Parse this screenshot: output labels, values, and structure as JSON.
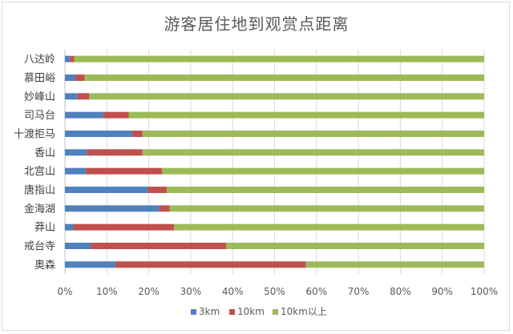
{
  "chart_data": {
    "type": "bar",
    "orientation": "horizontal",
    "stacked": "percent",
    "title": "游客居住地到观赏点距离",
    "categories": [
      "八达岭",
      "慕田峪",
      "妙峰山",
      "司马台",
      "十渡拒马",
      "香山",
      "北宫山",
      "唐指山",
      "金海湖",
      "莽山",
      "戒台寺",
      "奥森"
    ],
    "series": [
      {
        "name": "3km",
        "color": "#4f81bd",
        "values": [
          1.2,
          2.5,
          3.0,
          9.2,
          16.0,
          5.3,
          5.0,
          19.8,
          22.5,
          2.0,
          6.2,
          12.0
        ]
      },
      {
        "name": "10km",
        "color": "#c0504d",
        "values": [
          1.0,
          2.2,
          2.8,
          6.0,
          2.5,
          13.2,
          18.2,
          4.5,
          2.5,
          24.0,
          32.3,
          45.5
        ]
      },
      {
        "name": "10km以上",
        "color": "#9bbb59",
        "values": [
          97.8,
          95.3,
          94.2,
          84.8,
          81.5,
          81.5,
          76.8,
          75.7,
          75.0,
          74.0,
          61.5,
          42.5
        ]
      }
    ],
    "x_ticks": [
      "0%",
      "10%",
      "20%",
      "30%",
      "40%",
      "50%",
      "60%",
      "70%",
      "80%",
      "90%",
      "100%"
    ],
    "xlim": [
      0,
      100
    ],
    "grid": true,
    "legend": "bottom"
  }
}
